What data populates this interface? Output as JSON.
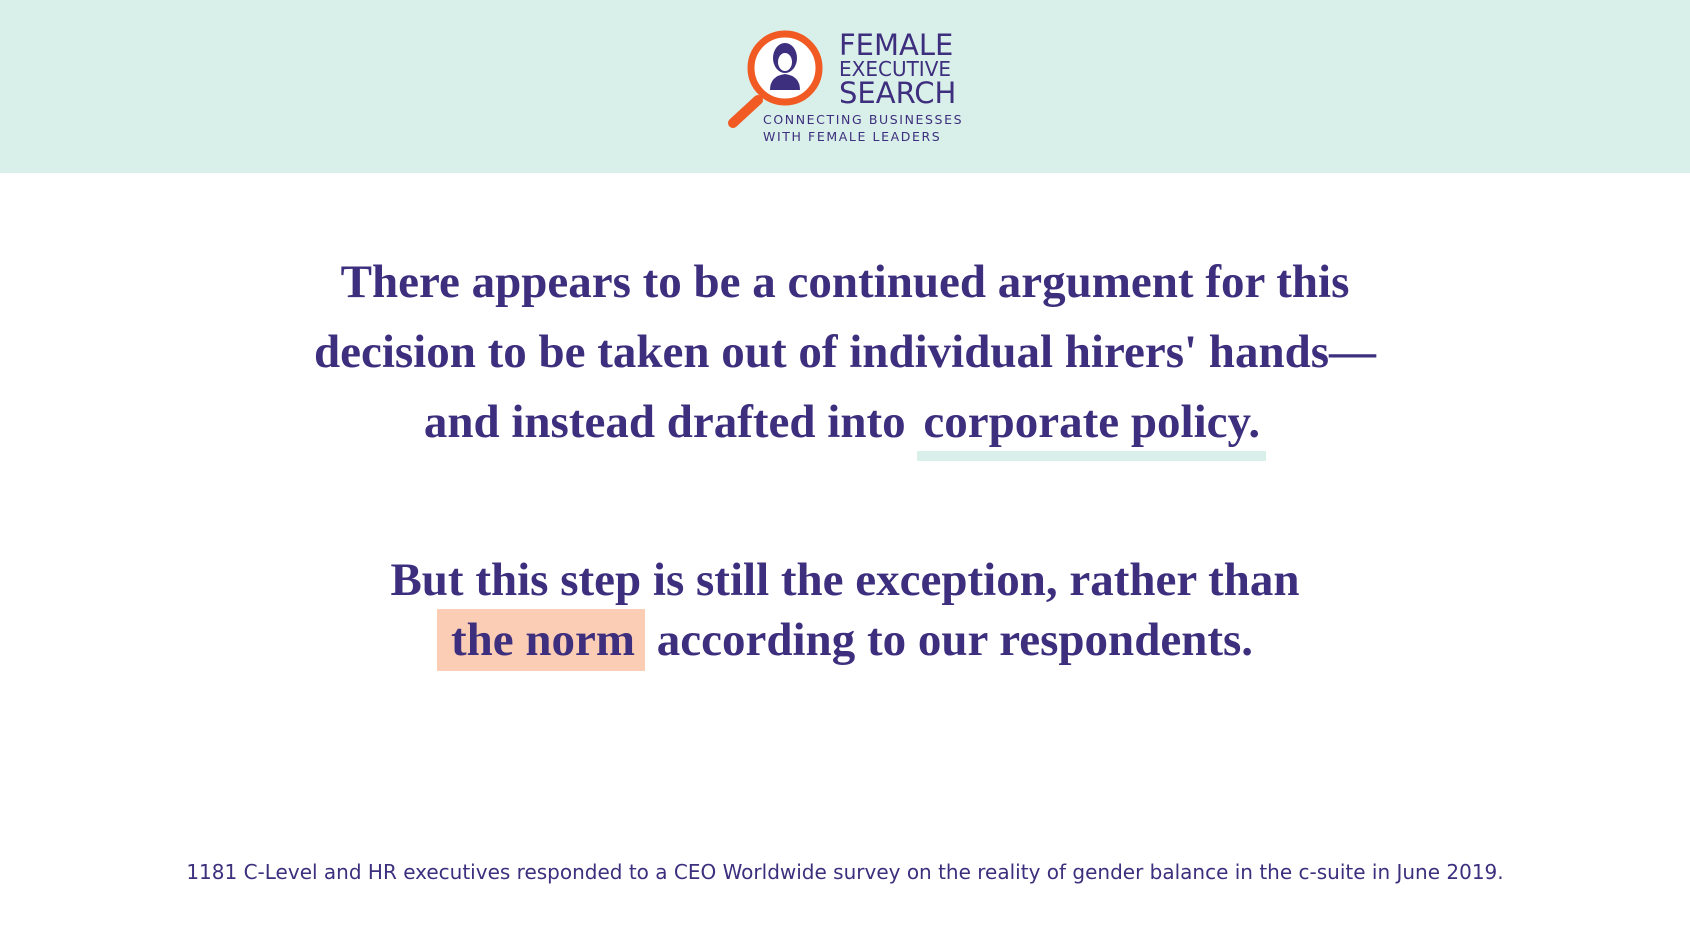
{
  "header": {
    "logo": {
      "name_lines": [
        "FEMALE",
        "EXECUTIVE",
        "SEARCH"
      ],
      "tagline_lines": [
        "CONNECTING BUSINESSES",
        "WITH FEMALE LEADERS"
      ]
    }
  },
  "quote": {
    "first": {
      "lines": [
        "There appears to be a continued argument for this",
        "decision to be taken out of individual hirers' hands—",
        "and instead drafted into"
      ],
      "underlined": "corporate policy."
    },
    "second": {
      "lines": [
        "But this step is still the exception, rather than"
      ],
      "highlighted": "the norm",
      "after": "according to our respondents."
    }
  },
  "footnote": "1181 C-Level and HR executives responded to a CEO Worldwide survey on the reality of gender balance in the c-suite in June 2019."
}
